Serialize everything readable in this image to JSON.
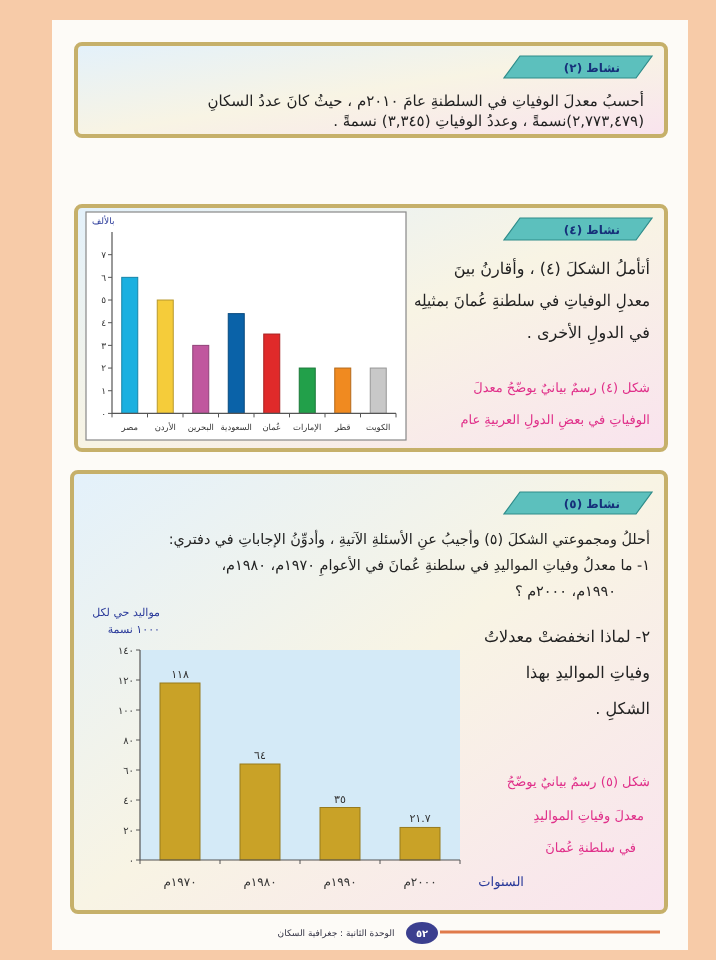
{
  "chart_data": [
    {
      "type": "other",
      "title": "نشاط (٢)",
      "annotations": [
        "أحسبُ معدلَ الوفياتِ في السلطنةِ عامَ ٢٠١٠م ، حيثُ كانَ عددُ السكانِ",
        "(٢,٧٧٣,٤٧٩)نسمةً ، وعددُ الوفياتِ (٣,٣٤٥) نسمةً ."
      ]
    },
    {
      "type": "bar",
      "ylabel": "بالألف",
      "categories": [
        "مصر",
        "الأردن",
        "البحرين",
        "السعودية",
        "عُمان",
        "الإمارات",
        "قطر",
        "الكويت"
      ],
      "values": [
        6,
        5,
        3,
        4.4,
        3.5,
        2,
        2,
        2
      ],
      "colors": [
        "#1ab0e0",
        "#f5cc3a",
        "#c0579e",
        "#0a62a8",
        "#e02a2a",
        "#22a04a",
        "#f08a20",
        "#c8c8c8"
      ],
      "ylim": [
        0,
        8
      ],
      "yticks": [
        {
          "value": 0,
          "label": "٠"
        },
        {
          "value": 1,
          "label": "١"
        },
        {
          "value": 2,
          "label": "٢"
        },
        {
          "value": 3,
          "label": "٣"
        },
        {
          "value": 4,
          "label": "٤"
        },
        {
          "value": 5,
          "label": "٥"
        },
        {
          "value": 6,
          "label": "٦"
        },
        {
          "value": 7,
          "label": "٧"
        }
      ],
      "annotations": [
        "نشاط (٤)",
        "أتأملُ الشكلَ (٤) ، وأقارنُ بينَ",
        "معدلِ الوفياتِ في سلطنةِ عُمانَ بمثيلِه",
        "في الدولِ الأخرى .",
        "شكل (٤) رسمٌ بيانيٌ يوضّحُ معدلَ",
        "الوفياتِ في بعضِ الدولِ العربيةِ عام"
      ]
    },
    {
      "type": "bar",
      "ylabel": "مواليد حي لكل ١٠٠٠ نسمة",
      "xlabel": "السنوات",
      "categories": [
        "١٩٧٠م",
        "١٩٨٠م",
        "١٩٩٠م",
        "٢٠٠٠م"
      ],
      "values": [
        118,
        64,
        35,
        21.7
      ],
      "color": "#c9a227",
      "value_labels": [
        "١١٨",
        "٦٤",
        "٣٥",
        "٢١.٧"
      ],
      "ylim": [
        0,
        140
      ],
      "yticks": [
        {
          "value": 0,
          "label": "٠"
        },
        {
          "value": 20,
          "label": "٢٠"
        },
        {
          "value": 40,
          "label": "٤٠"
        },
        {
          "value": 60,
          "label": "٦٠"
        },
        {
          "value": 80,
          "label": "٨٠"
        },
        {
          "value": 100,
          "label": "١٠٠"
        },
        {
          "value": 120,
          "label": "١٢٠"
        },
        {
          "value": 140,
          "label": "١٤٠"
        }
      ],
      "annotations": [
        "نشاط (٥)",
        "أحللُ ومجموعتي الشكلَ (٥) وأجيبُ عنِ الأسئلةِ الآتيةِ ، وأدوِّنُ الإجاباتِ في دفتري:",
        "١- ما معدلُ وفياتِ المواليدِ في سلطنةِ عُمانَ في الأعوامِ ١٩٧٠م، ١٩٨٠م،",
        "١٩٩٠م، ٢٠٠٠م ؟",
        "٢- لماذا انخفضتْ معدلاتُ",
        "وفياتِ المواليدِ بهذا",
        "الشكلِ .",
        "شكل (٥) رسمٌ بيانيٌ يوضّحُ",
        "معدلَ وفياتِ المواليدِ",
        "في سلطنةِ عُمانَ",
        "الوحدة الثانية : جغرافية السكان",
        "٥٢"
      ]
    }
  ]
}
